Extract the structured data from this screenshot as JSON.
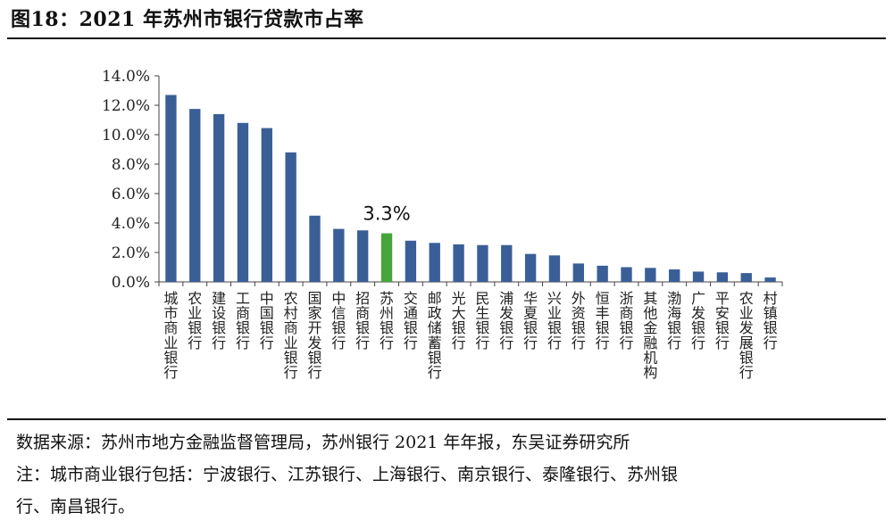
{
  "header": {
    "title": "图18：2021 年苏州市银行贷款市占率"
  },
  "footer": {
    "source": "数据来源：苏州市地方金融监督管理局，苏州银行 2021 年年报，东吴证券研究所",
    "note_line1": "注：城市商业银行包括：宁波银行、江苏银行、上海银行、南京银行、泰隆银行、苏州银",
    "note_line2": "行、南昌银行。"
  },
  "colors": {
    "bar": "#3a5f97",
    "highlight": "#46a53a",
    "axis": "#444444"
  },
  "chart_data": {
    "type": "bar",
    "title": "2021 年苏州市银行贷款市占率",
    "categories": [
      "城市商业银行",
      "农业银行",
      "建设银行",
      "工商银行",
      "中国银行",
      "农村商业银行",
      "国家开发银行",
      "中信银行",
      "招商银行",
      "苏州银行",
      "交通银行",
      "邮政储蓄银行",
      "光大银行",
      "民生银行",
      "浦发银行",
      "华夏银行",
      "兴业银行",
      "外资银行",
      "恒丰银行",
      "浙商银行",
      "其他金融机构",
      "渤海银行",
      "广发银行",
      "平安银行",
      "农业发展银行",
      "村镇银行"
    ],
    "values": [
      12.7,
      11.75,
      11.4,
      10.8,
      10.45,
      8.8,
      4.5,
      3.6,
      3.5,
      3.3,
      2.8,
      2.65,
      2.55,
      2.5,
      2.5,
      1.9,
      1.8,
      1.25,
      1.1,
      1.0,
      0.95,
      0.85,
      0.7,
      0.65,
      0.6,
      0.3
    ],
    "highlight_category": "苏州银行",
    "highlight_label": "3.3%",
    "ylim": [
      0,
      14
    ],
    "y_ticks": [
      "0.0%",
      "2.0%",
      "4.0%",
      "6.0%",
      "8.0%",
      "10.0%",
      "12.0%",
      "14.0%"
    ],
    "xlabel": "",
    "ylabel": "",
    "grid": false,
    "legend": "none"
  }
}
